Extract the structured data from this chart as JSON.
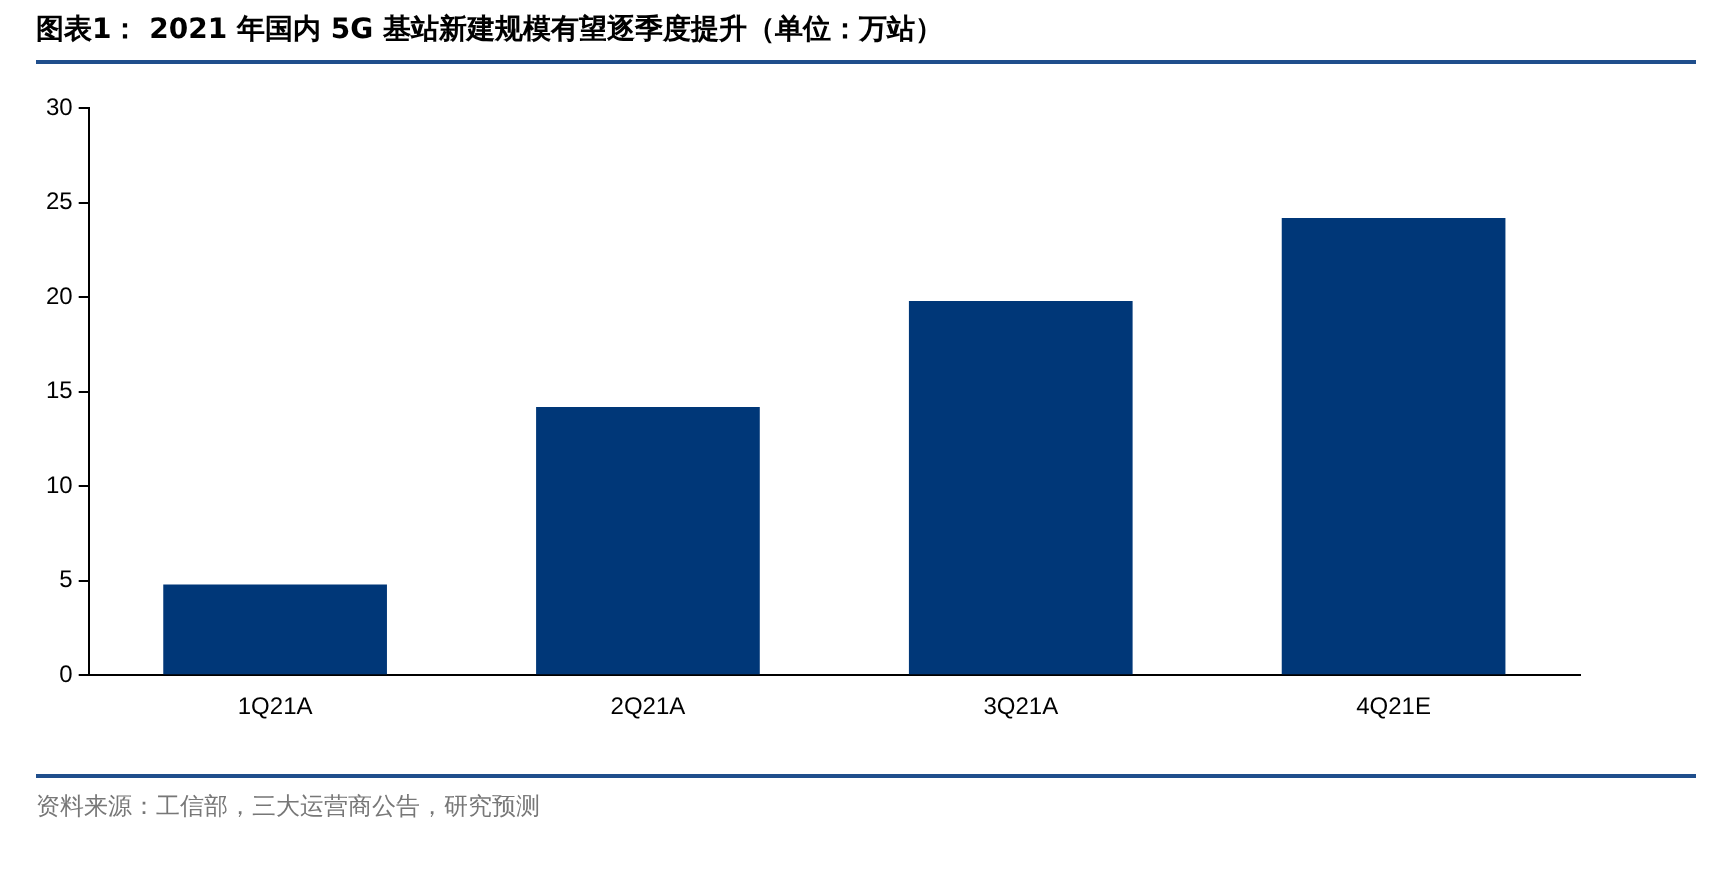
{
  "chart_data": {
    "type": "bar",
    "title": "图表1： 2021 年国内 5G 基站新建规模有望逐季度提升（单位：万站）",
    "categories": [
      "1Q21A",
      "2Q21A",
      "3Q21A",
      "4Q21E"
    ],
    "values": [
      4.8,
      14.2,
      19.8,
      24.2
    ],
    "color": "#003778",
    "ylim": [
      0,
      30
    ],
    "yticks": [
      0,
      5,
      10,
      15,
      20,
      25,
      30
    ],
    "grid": false,
    "annotations": [
      "资料来源：工信部，三大运营商公告，研究预测"
    ]
  }
}
